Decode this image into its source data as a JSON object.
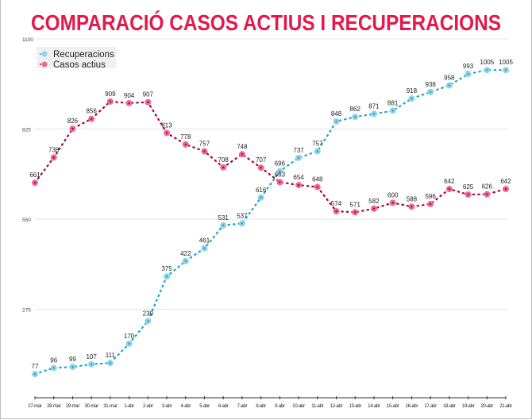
{
  "chart_data": {
    "type": "line",
    "title": "COMPARACIÓ CASOS ACTIUS I RECUPERACIONS",
    "xlabel": "",
    "ylabel": "",
    "ylim": [
      0,
      1100
    ],
    "yticks": [
      275,
      550,
      825,
      1100
    ],
    "grid": true,
    "legend_position": "top-left",
    "categories": [
      "27-mar",
      "28-mar",
      "29-mar",
      "30-mar",
      "31-mar",
      "1-abr",
      "2-abr",
      "3-abr",
      "4-abr",
      "5-abr",
      "6-abr",
      "7-abr",
      "8-abr",
      "9-abr",
      "10-abr",
      "11-abr",
      "12-abr",
      "13-abr",
      "14-abr",
      "15-abr",
      "16-abr",
      "17-abr",
      "18-abr",
      "19-abr",
      "20-abr",
      "21-abr"
    ],
    "series": [
      {
        "name": "Recuperacions",
        "point_color": "#8fd3ea",
        "line_color": "#1ba3c6",
        "values": [
          77,
          96,
          99,
          107,
          111,
          170,
          239,
          375,
          422,
          461,
          531,
          537,
          616,
          696,
          737,
          757,
          848,
          862,
          871,
          881,
          918,
          938,
          958,
          993,
          1005,
          1005
        ]
      },
      {
        "name": "Casos actius",
        "point_color": "#ec6a92",
        "line_color": "#a8003a",
        "values": [
          661,
          738,
          826,
          856,
          909,
          904,
          907,
          813,
          778,
          757,
          708,
          748,
          707,
          663,
          654,
          648,
          574,
          571,
          582,
          600,
          588,
          596,
          642,
          625,
          626,
          642
        ]
      }
    ]
  },
  "colors": {
    "title": "#e5174b",
    "grid": "#e6e6e6",
    "axis": "#333333"
  }
}
